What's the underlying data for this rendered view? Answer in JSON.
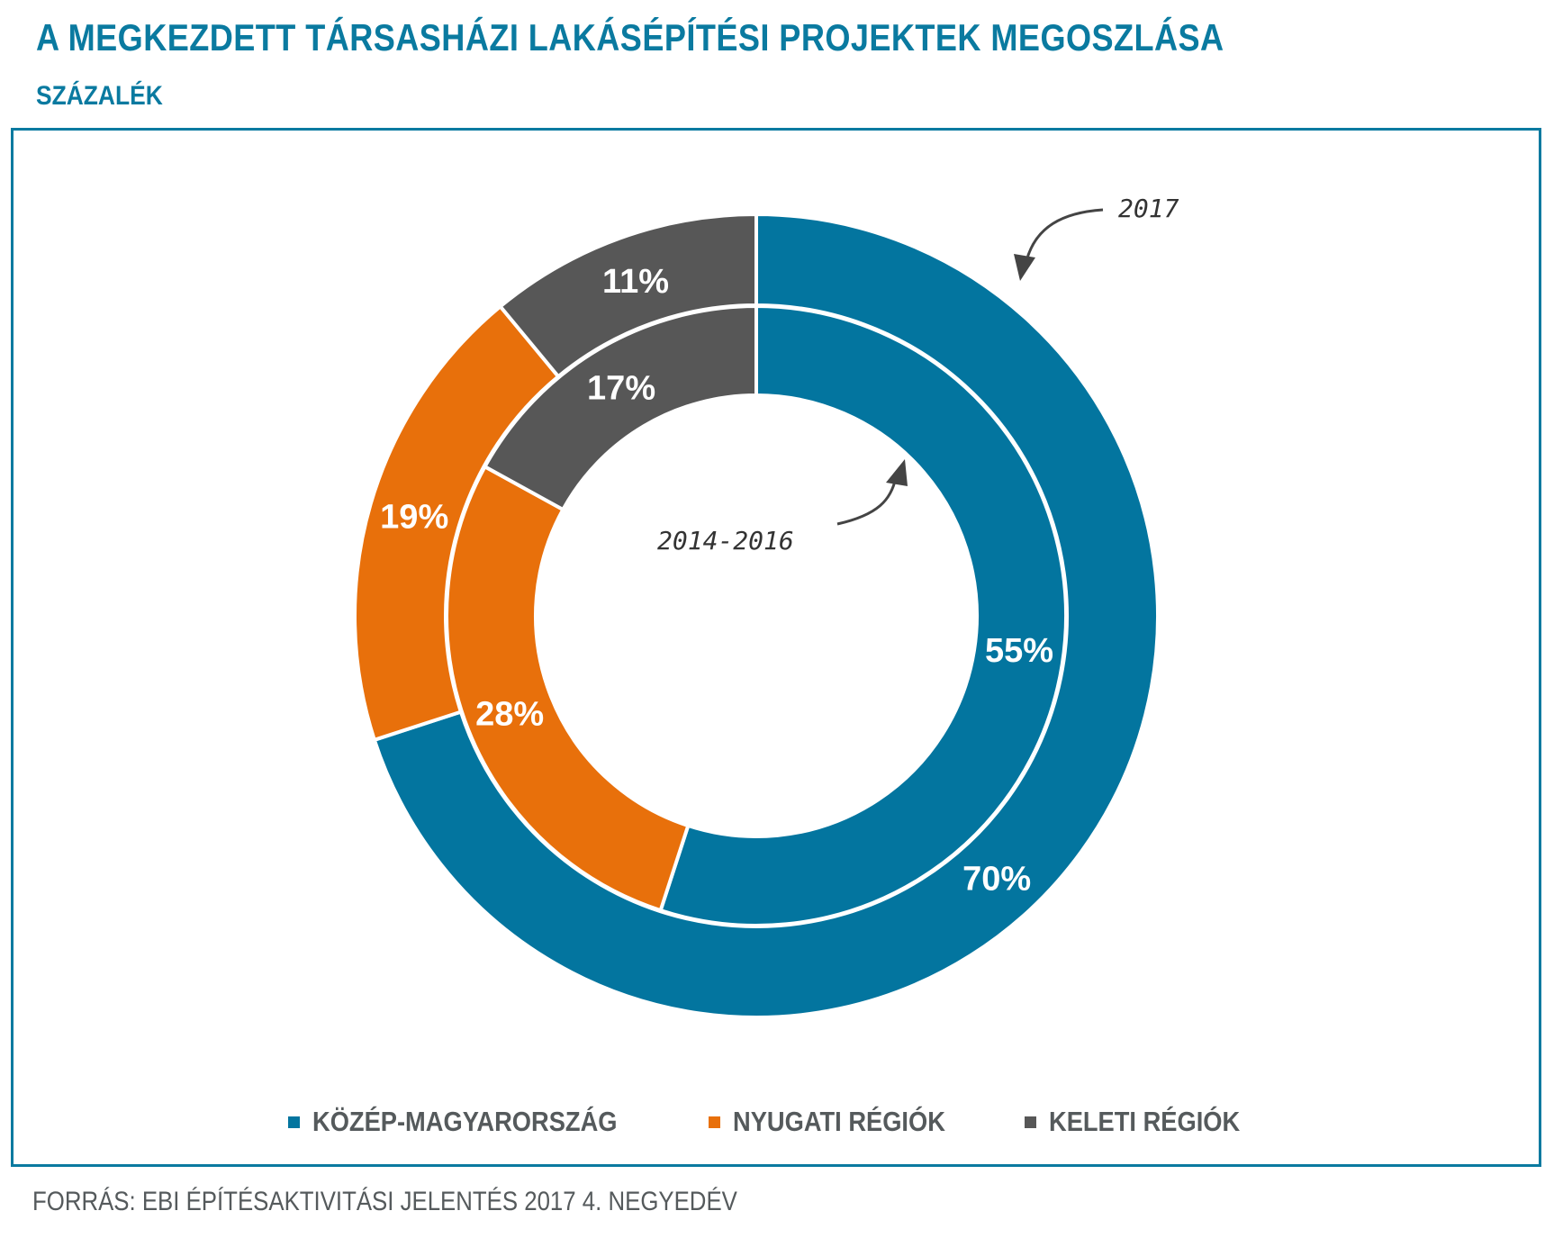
{
  "title": "A MEGKEZDETT TÁRSASHÁZI LAKÁSÉPÍTÉSI PROJEKTEK MEGOSZLÁSA",
  "subtitle": "SZÁZALÉK",
  "source": "FORRÁS: EBI ÉPÍTÉSAKTIVITÁSI JELENTÉS 2017 4. NEGYEDÉV",
  "colors": {
    "accent": "#0a7aa0",
    "kozep": "#03759f",
    "nyugati": "#e8700b",
    "keleti": "#575757"
  },
  "legend": [
    {
      "label": "KÖZÉP-MAGYARORSZÁG",
      "color": "#03759f"
    },
    {
      "label": "NYUGATI RÉGIÓK",
      "color": "#e8700b"
    },
    {
      "label": "KELETI RÉGIÓK",
      "color": "#575757"
    }
  ],
  "chart_data": {
    "type": "pie",
    "variant": "nested-donut",
    "categories": [
      "KÖZÉP-MAGYARORSZÁG",
      "NYUGATI RÉGIÓK",
      "KELETI RÉGIÓK"
    ],
    "series": [
      {
        "name": "2017",
        "ring": "outer",
        "values": [
          70,
          19,
          11
        ],
        "labels": [
          "70%",
          "19%",
          "11%"
        ]
      },
      {
        "name": "2014-2016",
        "ring": "inner",
        "values": [
          55,
          28,
          17
        ],
        "labels": [
          "55%",
          "28%",
          "17%"
        ]
      }
    ],
    "annotations": [
      "2017",
      "2014-2016"
    ]
  }
}
